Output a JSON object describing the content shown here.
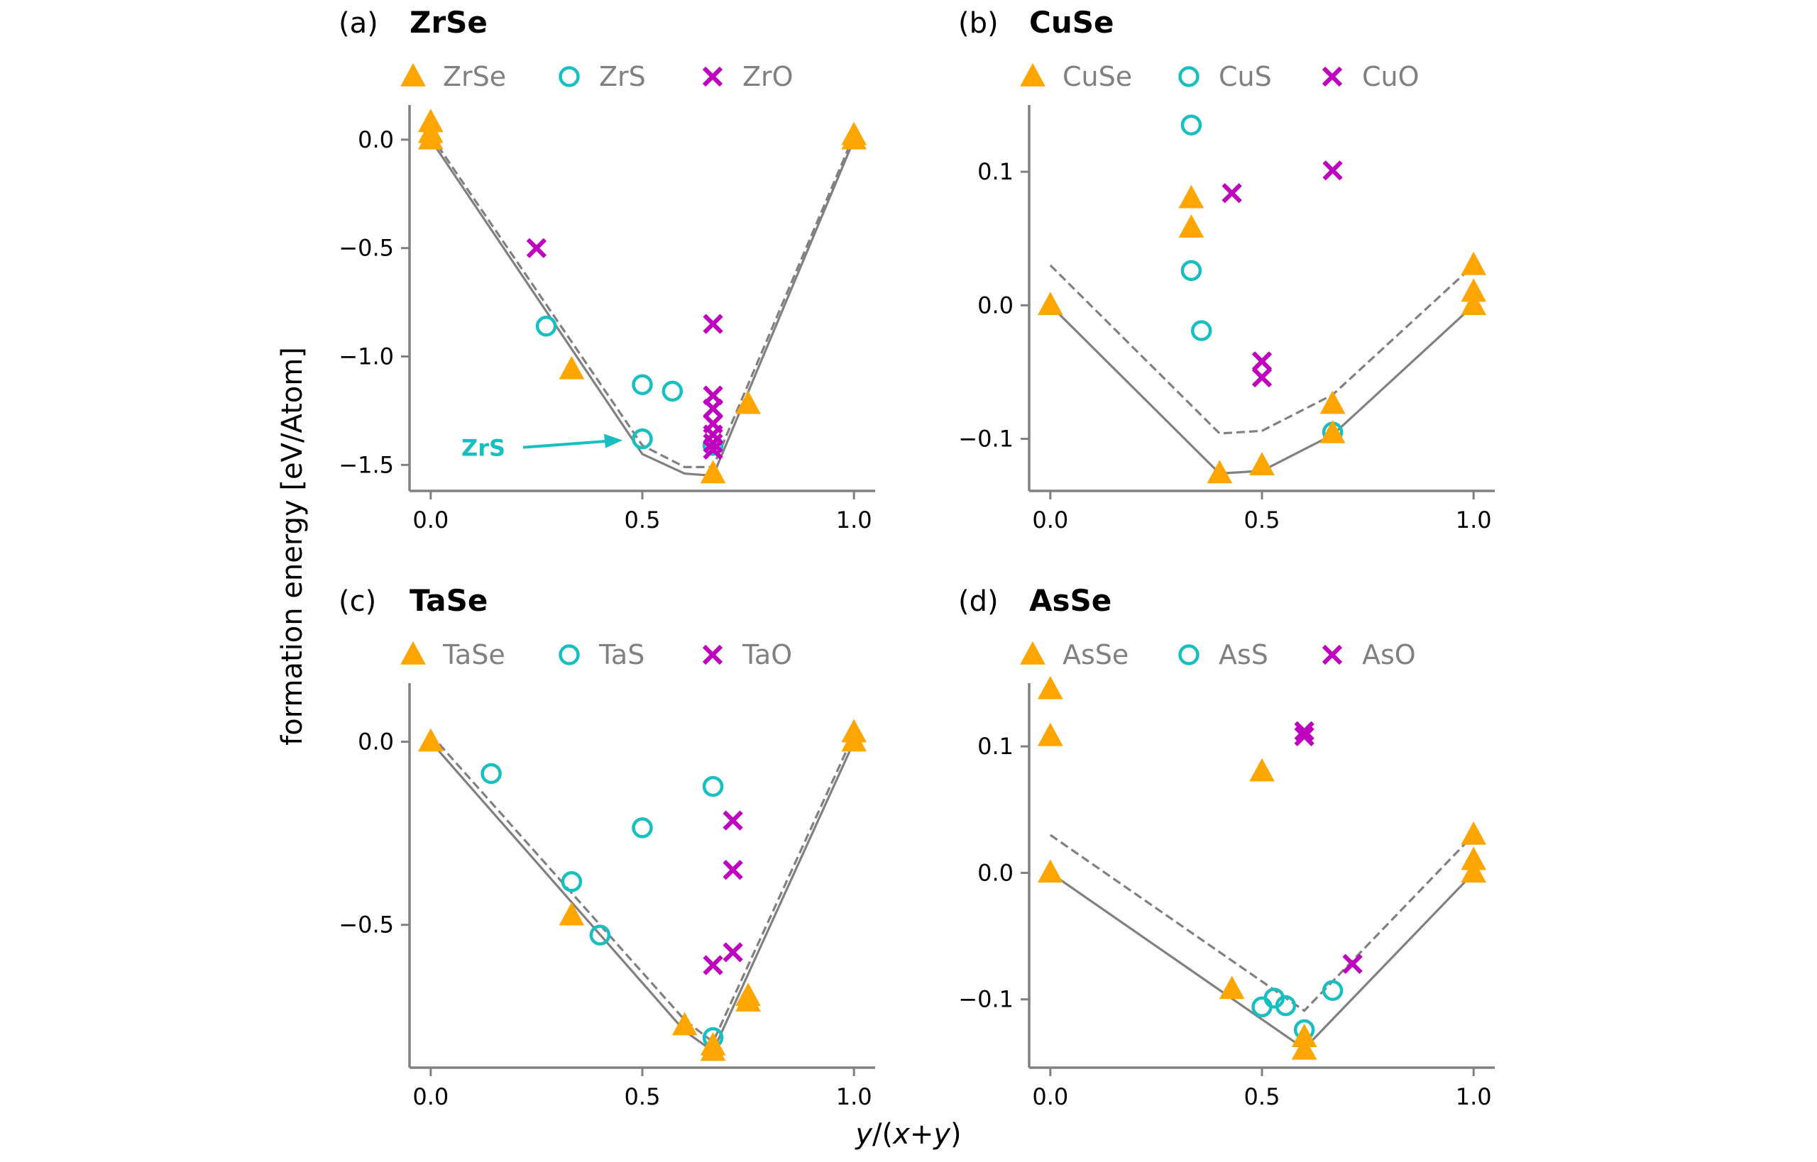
{
  "figure": {
    "ylabel": "formation energy [eV/Atom]",
    "xlabel_parts": [
      "y",
      "/(",
      "x",
      "+",
      "y",
      ")"
    ]
  },
  "colors": {
    "triangle": "#FFA500",
    "circle": "#17BFC0",
    "cross": "#BF00BF",
    "hull": "#808080",
    "axis": "#808080",
    "legend_text": "#808080",
    "annotation": "#17BFC0"
  },
  "chart_data": [
    {
      "type": "scatter",
      "panel": "(a)",
      "title": "ZrSe",
      "xlim": [
        -0.05,
        1.05
      ],
      "ylim": [
        -1.62,
        0.16
      ],
      "xticks": [
        0.0,
        0.5,
        1.0
      ],
      "yticks": [
        0.0,
        -0.5,
        -1.0,
        -1.5
      ],
      "legend": [
        "ZrSe",
        "ZrS",
        "ZrO"
      ],
      "series": [
        {
          "name": "ZrSe",
          "marker": "triangle",
          "points": [
            [
              0,
              0.08
            ],
            [
              0,
              0.03
            ],
            [
              0,
              0.0
            ],
            [
              0.333,
              -1.06
            ],
            [
              0.667,
              -1.54
            ],
            [
              0.75,
              -1.22
            ],
            [
              1,
              0.02
            ],
            [
              1,
              0.0
            ]
          ]
        },
        {
          "name": "ZrS",
          "marker": "circle",
          "points": [
            [
              0.273,
              -0.86
            ],
            [
              0.5,
              -1.13
            ],
            [
              0.5,
              -1.38
            ],
            [
              0.571,
              -1.16
            ],
            [
              0.667,
              -1.41
            ]
          ]
        },
        {
          "name": "ZrO",
          "marker": "cross",
          "points": [
            [
              0.25,
              -0.5
            ],
            [
              0.667,
              -0.85
            ],
            [
              0.667,
              -1.18
            ],
            [
              0.667,
              -1.24
            ],
            [
              0.667,
              -1.31
            ],
            [
              0.667,
              -1.36
            ],
            [
              0.667,
              -1.4
            ],
            [
              0.667,
              -1.43
            ]
          ]
        }
      ],
      "hull_solid": [
        [
          0,
          0
        ],
        [
          0.5,
          -1.45
        ],
        [
          0.6,
          -1.54
        ],
        [
          0.667,
          -1.55
        ],
        [
          1,
          0
        ]
      ],
      "hull_dashed": [
        [
          0,
          0.02
        ],
        [
          0.5,
          -1.41
        ],
        [
          0.6,
          -1.51
        ],
        [
          0.667,
          -1.51
        ],
        [
          1,
          0.02
        ]
      ],
      "annotation": {
        "text": "ZrS",
        "target": [
          0.5,
          -1.38
        ]
      }
    },
    {
      "type": "scatter",
      "panel": "(b)",
      "title": "CuSe",
      "xlim": [
        -0.05,
        1.05
      ],
      "ylim": [
        -0.139,
        0.15
      ],
      "xticks": [
        0.0,
        0.5,
        1.0
      ],
      "yticks": [
        0.1,
        0.0,
        -0.1
      ],
      "legend": [
        "CuSe",
        "CuS",
        "CuO"
      ],
      "series": [
        {
          "name": "CuSe",
          "marker": "triangle",
          "points": [
            [
              0,
              0.0
            ],
            [
              0.333,
              0.08
            ],
            [
              0.333,
              0.058
            ],
            [
              0.4,
              -0.126
            ],
            [
              0.5,
              -0.12
            ],
            [
              0.667,
              -0.074
            ],
            [
              0.667,
              -0.096
            ],
            [
              1,
              0.03
            ],
            [
              1,
              0.01
            ],
            [
              1,
              0.0
            ]
          ]
        },
        {
          "name": "CuS",
          "marker": "circle",
          "points": [
            [
              0.333,
              0.135
            ],
            [
              0.333,
              0.026
            ],
            [
              0.357,
              -0.019
            ],
            [
              0.667,
              -0.095
            ]
          ]
        },
        {
          "name": "CuO",
          "marker": "cross",
          "points": [
            [
              0.429,
              0.084
            ],
            [
              0.5,
              -0.042
            ],
            [
              0.5,
              -0.054
            ],
            [
              0.667,
              0.101
            ]
          ]
        }
      ],
      "hull_solid": [
        [
          0,
          0
        ],
        [
          0.4,
          -0.126
        ],
        [
          0.5,
          -0.124
        ],
        [
          0.667,
          -0.097
        ],
        [
          1,
          0
        ]
      ],
      "hull_dashed": [
        [
          0,
          0.03
        ],
        [
          0.4,
          -0.096
        ],
        [
          0.5,
          -0.094
        ],
        [
          0.667,
          -0.067
        ],
        [
          1,
          0.03
        ]
      ]
    },
    {
      "type": "scatter",
      "panel": "(c)",
      "title": "TaSe",
      "xlim": [
        -0.05,
        1.05
      ],
      "ylim": [
        -0.89,
        0.16
      ],
      "xticks": [
        0.0,
        0.5,
        1.0
      ],
      "yticks": [
        0.0,
        -0.5
      ],
      "legend": [
        "TaSe",
        "TaS",
        "TaO"
      ],
      "series": [
        {
          "name": "TaSe",
          "marker": "triangle",
          "points": [
            [
              0,
              0.0
            ],
            [
              0.333,
              -0.475
            ],
            [
              0.6,
              -0.775
            ],
            [
              0.667,
              -0.83
            ],
            [
              0.667,
              -0.845
            ],
            [
              0.75,
              -0.695
            ],
            [
              0.75,
              -0.71
            ],
            [
              1,
              0.025
            ],
            [
              1,
              0.0
            ]
          ]
        },
        {
          "name": "TaS",
          "marker": "circle",
          "points": [
            [
              0.143,
              -0.087
            ],
            [
              0.333,
              -0.382
            ],
            [
              0.4,
              -0.528
            ],
            [
              0.5,
              -0.235
            ],
            [
              0.667,
              -0.122
            ],
            [
              0.667,
              -0.808
            ]
          ]
        },
        {
          "name": "TaO",
          "marker": "cross",
          "points": [
            [
              0.667,
              -0.61
            ],
            [
              0.714,
              -0.215
            ],
            [
              0.714,
              -0.35
            ],
            [
              0.714,
              -0.575
            ]
          ]
        }
      ],
      "hull_solid": [
        [
          0,
          0
        ],
        [
          0.6,
          -0.79
        ],
        [
          0.667,
          -0.845
        ],
        [
          1,
          0
        ]
      ],
      "hull_dashed": [
        [
          0,
          0.02
        ],
        [
          0.6,
          -0.76
        ],
        [
          0.667,
          -0.82
        ],
        [
          1,
          0.02
        ]
      ]
    },
    {
      "type": "scatter",
      "panel": "(d)",
      "title": "AsSe",
      "xlim": [
        -0.05,
        1.05
      ],
      "ylim": [
        -0.154,
        0.15
      ],
      "xticks": [
        0.0,
        0.5,
        1.0
      ],
      "yticks": [
        0.1,
        0.0,
        -0.1
      ],
      "legend": [
        "AsSe",
        "AsS",
        "AsO"
      ],
      "series": [
        {
          "name": "AsSe",
          "marker": "triangle",
          "points": [
            [
              0,
              0.145
            ],
            [
              0,
              0.108
            ],
            [
              0,
              0.0
            ],
            [
              0.429,
              -0.092
            ],
            [
              0.5,
              0.08
            ],
            [
              0.6,
              -0.13
            ],
            [
              0.6,
              -0.14
            ],
            [
              1,
              0.03
            ],
            [
              1,
              0.01
            ],
            [
              1,
              0.0
            ]
          ]
        },
        {
          "name": "AsS",
          "marker": "circle",
          "points": [
            [
              0.5,
              -0.106
            ],
            [
              0.529,
              -0.099
            ],
            [
              0.556,
              -0.105
            ],
            [
              0.6,
              -0.124
            ],
            [
              0.667,
              -0.093
            ]
          ]
        },
        {
          "name": "AsO",
          "marker": "cross",
          "points": [
            [
              0.6,
              0.112
            ],
            [
              0.6,
              0.108
            ],
            [
              0.714,
              -0.072
            ]
          ]
        }
      ],
      "hull_solid": [
        [
          0,
          0
        ],
        [
          0.6,
          -0.139
        ],
        [
          1,
          0
        ]
      ],
      "hull_dashed": [
        [
          0,
          0.03
        ],
        [
          0.6,
          -0.109
        ],
        [
          1,
          0.03
        ]
      ]
    }
  ]
}
